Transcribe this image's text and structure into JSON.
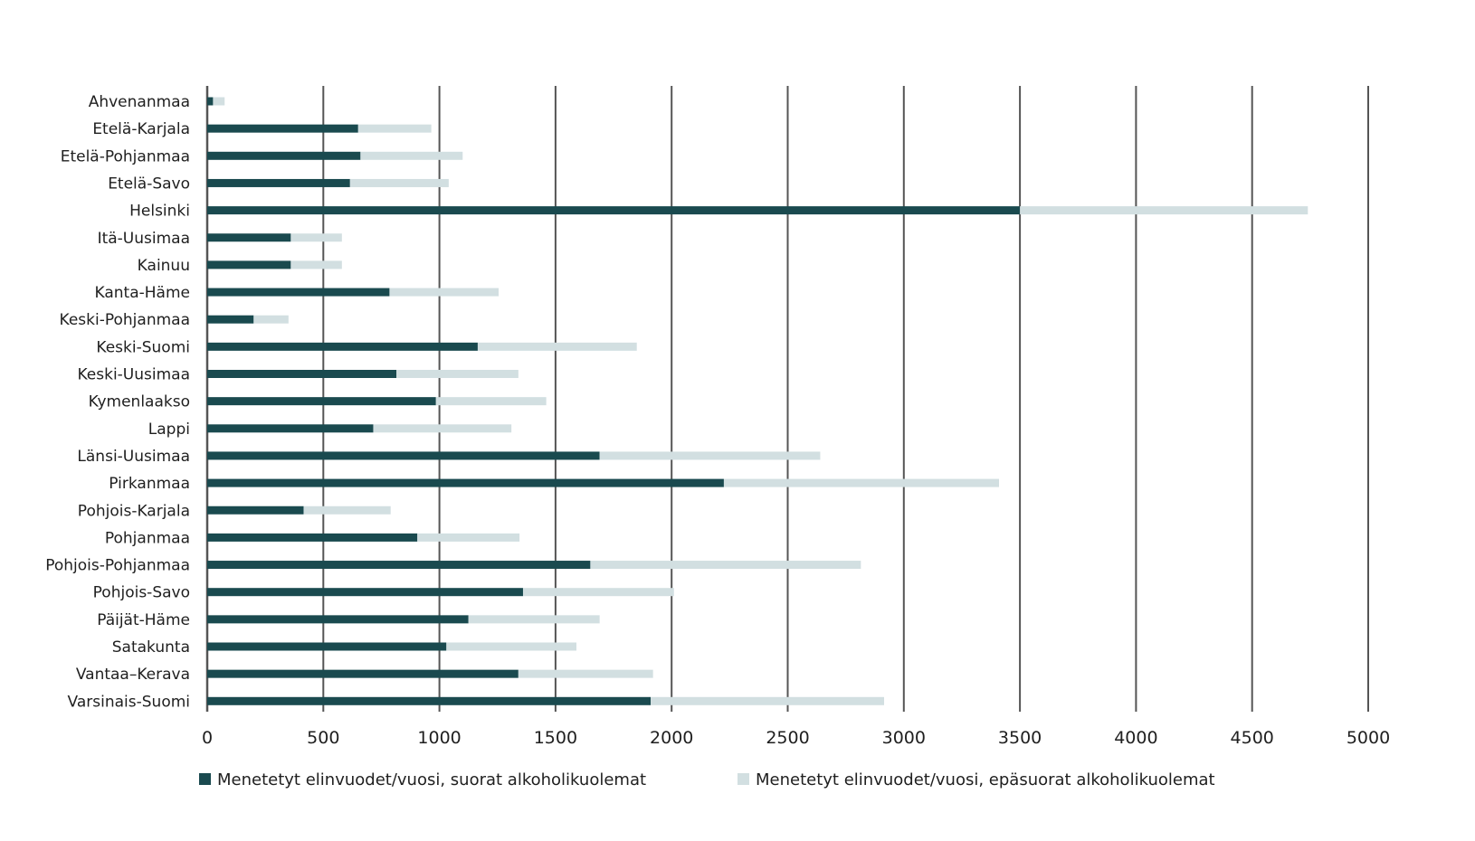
{
  "chart_data": {
    "type": "bar",
    "orientation": "horizontal",
    "stacked": true,
    "categories": [
      "Ahvenanmaa",
      "Etelä-Karjala",
      "Etelä-Pohjanmaa",
      "Etelä-Savo",
      "Helsinki",
      "Itä-Uusimaa",
      "Kainuu",
      "Kanta-Häme",
      "Keski-Pohjanmaa",
      "Keski-Suomi",
      "Keski-Uusimaa",
      "Kymenlaakso",
      "Lappi",
      "Länsi-Uusimaa",
      "Pirkanmaa",
      "Pohjois-Karjala",
      "Pohjanmaa",
      "Pohjois-Pohjanmaa",
      "Pohjois-Savo",
      "Päijät-Häme",
      "Satakunta",
      "Vantaa–Kerava",
      "Varsinais-Suomi"
    ],
    "series": [
      {
        "name": "Menetetyt elinvuodet/vuosi, suorat alkoholikuolemat",
        "color": "#1a4a4f",
        "values": [
          25,
          650,
          660,
          615,
          3500,
          360,
          360,
          785,
          200,
          1165,
          815,
          985,
          715,
          1690,
          2225,
          415,
          905,
          1650,
          1360,
          1125,
          1030,
          1340,
          1910
        ]
      },
      {
        "name": "Menetetyt elinvuodet/vuosi, epäsuorat alkoholikuolemat",
        "color": "#d2dfe1",
        "values": [
          50,
          315,
          440,
          425,
          1240,
          220,
          220,
          470,
          150,
          685,
          525,
          475,
          595,
          950,
          1185,
          375,
          440,
          1165,
          650,
          565,
          560,
          580,
          1005
        ]
      }
    ],
    "xlim": [
      0,
      5000
    ],
    "xticks": [
      "0",
      "500",
      "1000",
      "1500",
      "2000",
      "2500",
      "3000",
      "3500",
      "4000",
      "4500",
      "5000"
    ],
    "grid": "vertical",
    "legend_position": "bottom",
    "gridline_color": "#555555"
  }
}
